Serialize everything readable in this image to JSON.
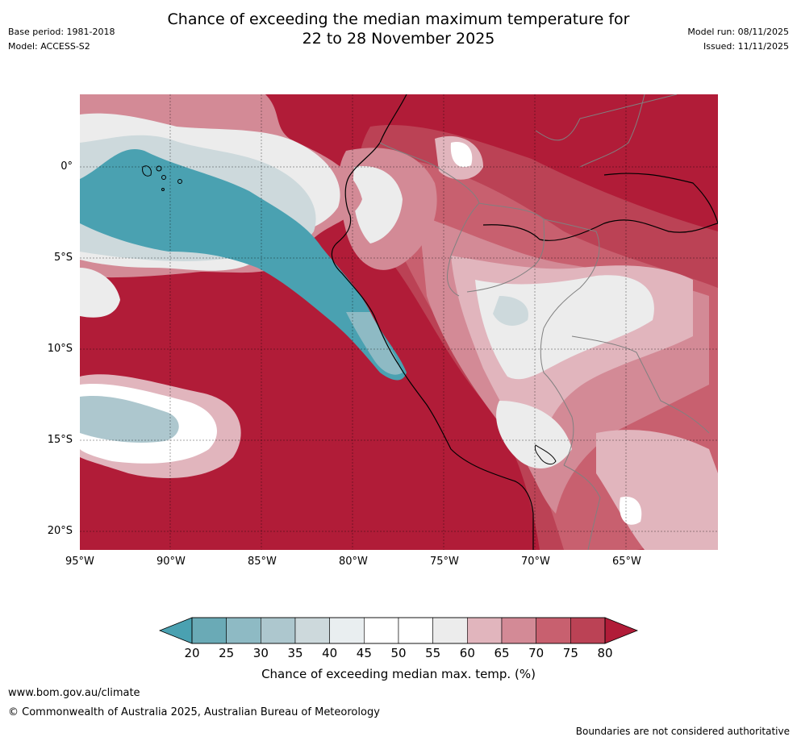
{
  "title_line1": "Chance of exceeding the median maximum temperature for",
  "title_line2": "22 to 28 November 2025",
  "base_period": "Base period: 1981-2018",
  "model": "Model: ACCESS-S2",
  "model_run": "Model run: 08/11/2025",
  "issued": "Issued: 11/11/2025",
  "lat_ticks": [
    "0°",
    "5°S",
    "10°S",
    "15°S",
    "20°S"
  ],
  "lon_ticks": [
    "95°W",
    "90°W",
    "85°W",
    "80°W",
    "75°W",
    "70°W",
    "65°W"
  ],
  "colorbar": {
    "ticks": [
      "20",
      "25",
      "30",
      "35",
      "40",
      "45",
      "50",
      "55",
      "60",
      "65",
      "70",
      "75",
      "80"
    ],
    "label": "Chance of exceeding median max. temp. (%)",
    "colors": [
      "#4aa1b1",
      "#6aaab6",
      "#8ebac4",
      "#adc7ce",
      "#cdd9dc",
      "#e9eef0",
      "#ffffff",
      "#ffffff",
      "#ececec",
      "#e1b5bd",
      "#d38a96",
      "#c8606f",
      "#bb4255",
      "#b11c38"
    ]
  },
  "footer": {
    "url": "www.bom.gov.au/climate",
    "copyright": "© Commonwealth of Australia 2025, Australian Bureau of Meteorology",
    "disclaimer": "Boundaries are not considered authoritative"
  }
}
